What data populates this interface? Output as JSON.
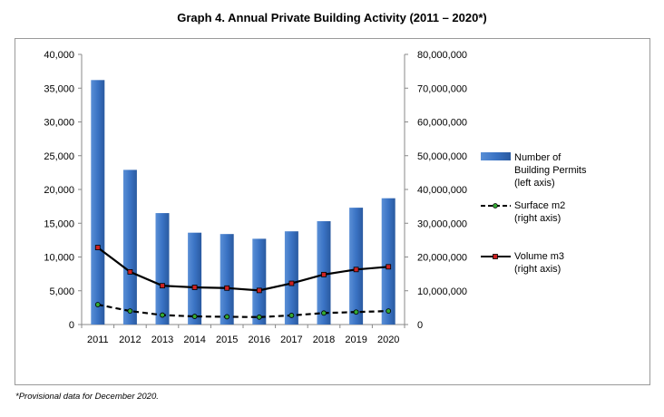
{
  "title": "Graph 4. Annual Private Building Activity (2011 – 2020*)",
  "footnote": "*Provisional data for December 2020.",
  "chart_data": {
    "type": "bar",
    "categories": [
      "2011",
      "2012",
      "2013",
      "2014",
      "2015",
      "2016",
      "2017",
      "2018",
      "2019",
      "2020"
    ],
    "series": [
      {
        "name": "Number of Building Permits (left axis)",
        "kind": "bar",
        "axis": "left",
        "color": "#3a73c4",
        "values": [
          36200,
          22900,
          16500,
          13600,
          13400,
          12700,
          13800,
          15300,
          17300,
          18700
        ]
      },
      {
        "name": "Surface m2 (right axis)",
        "kind": "line",
        "axis": "right",
        "style": "dashed",
        "color": "#000000",
        "marker_color": "#33aa33",
        "values": [
          5900000,
          4000000,
          2800000,
          2400000,
          2300000,
          2200000,
          2700000,
          3400000,
          3700000,
          4000000
        ]
      },
      {
        "name": "Volume m3 (right axis)",
        "kind": "line",
        "axis": "right",
        "style": "solid",
        "color": "#000000",
        "marker_color": "#cc2222",
        "values": [
          22800000,
          15600000,
          11500000,
          11000000,
          10800000,
          10100000,
          12200000,
          14800000,
          16300000,
          17100000
        ]
      }
    ],
    "left_axis": {
      "ticks": [
        "0",
        "5,000",
        "10,000",
        "15,000",
        "20,000",
        "25,000",
        "30,000",
        "35,000",
        "40,000"
      ],
      "ylim": [
        0,
        40000
      ]
    },
    "right_axis": {
      "ticks": [
        "0",
        "10,000,000",
        "20,000,000",
        "30,000,000",
        "40,000,000",
        "50,000,000",
        "60,000,000",
        "70,000,000",
        "80,000,000"
      ],
      "ylim": [
        0,
        80000000
      ]
    },
    "legend": [
      {
        "lines": [
          "Number of",
          "Building Permits",
          "(left axis)"
        ]
      },
      {
        "lines": [
          "Surface m2",
          "(right axis)"
        ]
      },
      {
        "lines": [
          "Volume m3",
          "(right axis)"
        ]
      }
    ],
    "grid": false,
    "legend_position": "right"
  }
}
